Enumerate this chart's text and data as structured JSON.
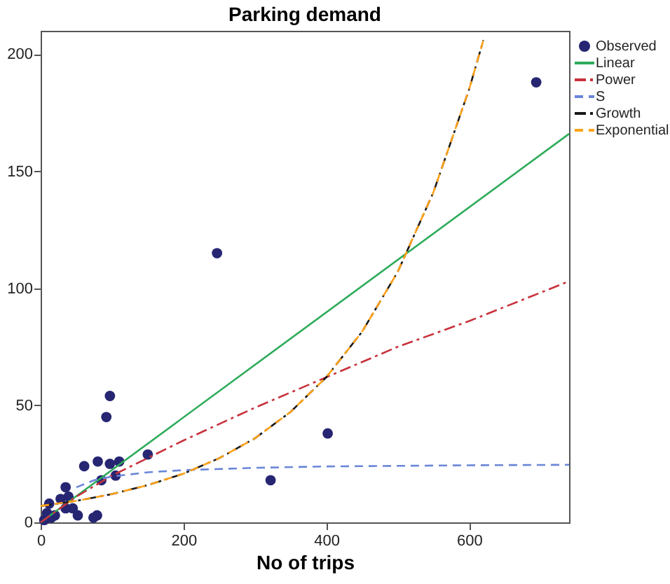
{
  "chart_data": {
    "type": "scatter",
    "title": "Parking demand",
    "xlabel": "No of trips",
    "xlim": [
      0,
      740
    ],
    "ylim": [
      0,
      210
    ],
    "xticks": [
      0,
      200,
      400,
      600
    ],
    "yticks": [
      0,
      50,
      100,
      150,
      200
    ],
    "grid": false,
    "legend": "right",
    "series": [
      {
        "name": "Observed",
        "marker": "circle",
        "color": "#262673",
        "x": [
          694,
          247,
          402,
          322,
          150,
          97,
          92,
          110,
          97,
          105,
          80,
          61,
          85,
          35,
          52,
          79,
          74,
          39,
          28,
          35,
          45,
          12,
          9,
          20,
          15,
          5
        ],
        "values": [
          188,
          115,
          38,
          18,
          29,
          54,
          45,
          26,
          25,
          20,
          26,
          24,
          18,
          15,
          3,
          3,
          2,
          11,
          10,
          6,
          6,
          8,
          4,
          3,
          2,
          1
        ]
      },
      {
        "name": "Linear",
        "type": "line",
        "line_style": "solid",
        "color": "#2eab5a",
        "x": [
          0,
          740
        ],
        "values": [
          0,
          166
        ]
      },
      {
        "name": "Power",
        "type": "line",
        "line_style": "dashdot",
        "color": "#c8323c",
        "x": [
          0,
          50,
          100,
          200,
          300,
          400,
          500,
          600,
          740
        ],
        "values": [
          0,
          11,
          20,
          35,
          49,
          62,
          75,
          86,
          103
        ]
      },
      {
        "name": "S",
        "type": "line",
        "line_style": "dashed",
        "color": "#6a86d8",
        "x": [
          50,
          75,
          100,
          150,
          200,
          300,
          400,
          600,
          740
        ],
        "values": [
          15,
          18,
          19.6,
          21.4,
          22.3,
          23.3,
          23.9,
          24.4,
          24.6
        ]
      },
      {
        "name": "Growth",
        "type": "line",
        "line_style": "dashdot",
        "color": "#1a1a1a",
        "x": [
          0,
          50,
          100,
          150,
          200,
          250,
          300,
          350,
          400,
          450,
          500,
          550,
          600,
          620
        ],
        "values": [
          7,
          9.2,
          12.1,
          15.9,
          20.8,
          27.4,
          35.9,
          47.2,
          62,
          81.4,
          107,
          141,
          185,
          206
        ]
      },
      {
        "name": "Exponential",
        "type": "line",
        "line_style": "dashed",
        "color": "#ffa31a",
        "x": [
          0,
          50,
          100,
          150,
          200,
          250,
          300,
          350,
          400,
          450,
          500,
          550,
          600,
          620
        ],
        "values": [
          7,
          9.2,
          12.1,
          15.9,
          20.8,
          27.4,
          35.9,
          47.2,
          62,
          81.4,
          107,
          141,
          185,
          206
        ]
      }
    ]
  }
}
